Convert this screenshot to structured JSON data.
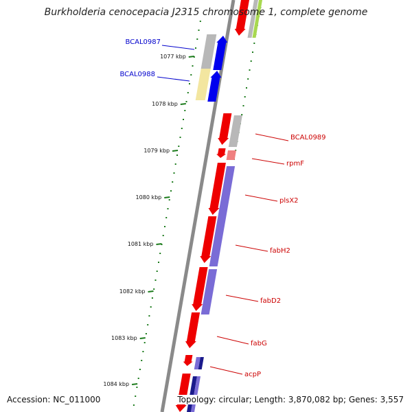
{
  "title": "Burkholderia cenocepacia J2315 chromosome 1, complete genome",
  "accession": "Accession: NC_011000",
  "topology": "Topology: circular; Length: 3,870,082 bp; Genes: 3,557",
  "ticks": [
    "1077 kbp",
    "1078 kbp",
    "1079 kbp",
    "1080 kbp",
    "1081 kbp",
    "1082 kbp",
    "1083 kbp",
    "1084 kbp"
  ],
  "genes": [
    {
      "name": "BCAL0987",
      "color": "#0000cc"
    },
    {
      "name": "BCAL0988",
      "color": "#0000cc"
    },
    {
      "name": "BCAL0989",
      "color": "#cc0000"
    },
    {
      "name": "rpmF",
      "color": "#cc0000"
    },
    {
      "name": "plsX2",
      "color": "#cc0000"
    },
    {
      "name": "fabH2",
      "color": "#cc0000"
    },
    {
      "name": "fabD2",
      "color": "#cc0000"
    },
    {
      "name": "fabG",
      "color": "#cc0000"
    },
    {
      "name": "acpP",
      "color": "#cc0000"
    }
  ],
  "colors": {
    "backbone": "#8a8a8a",
    "tick": "#1a7a1a",
    "gene_forward": "#0000ee",
    "gene_reverse": "#ee0000",
    "cog_gray": "#b8b8b8",
    "cog_yellow": "#f3e6a0",
    "cog_purple": "#7a6cd6",
    "cog_pink": "#f08080",
    "cog_navy": "#1a1a8c",
    "cog_green": "#a8d850"
  }
}
